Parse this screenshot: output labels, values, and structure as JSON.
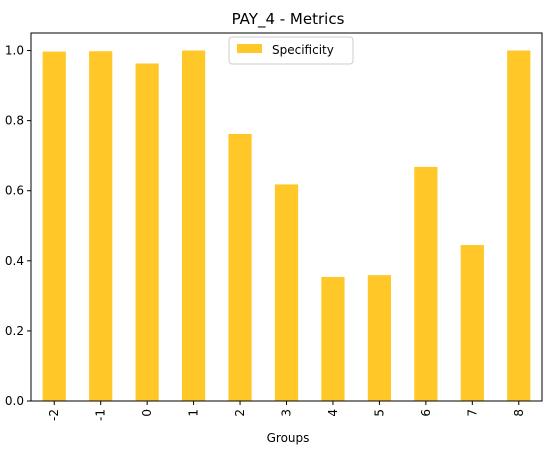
{
  "chart_data": {
    "type": "bar",
    "title": "PAY_4 - Metrics",
    "xlabel": "Groups",
    "ylabel": "",
    "categories": [
      "-2",
      "-1",
      "0",
      "1",
      "2",
      "3",
      "4",
      "5",
      "6",
      "7",
      "8"
    ],
    "series": [
      {
        "name": "Specificity",
        "color": "#ffc828",
        "values": [
          0.997,
          0.998,
          0.963,
          1.0,
          0.762,
          0.618,
          0.354,
          0.359,
          0.668,
          0.445,
          1.0
        ]
      }
    ],
    "ylim": [
      0,
      1.05
    ],
    "yticks": [
      0.0,
      0.2,
      0.4,
      0.6,
      0.8,
      1.0
    ],
    "ytick_labels": [
      "0.0",
      "0.2",
      "0.4",
      "0.6",
      "0.8",
      "1.0"
    ],
    "grid": false,
    "legend_position": "top-center",
    "xtick_rotation": "vertical"
  }
}
